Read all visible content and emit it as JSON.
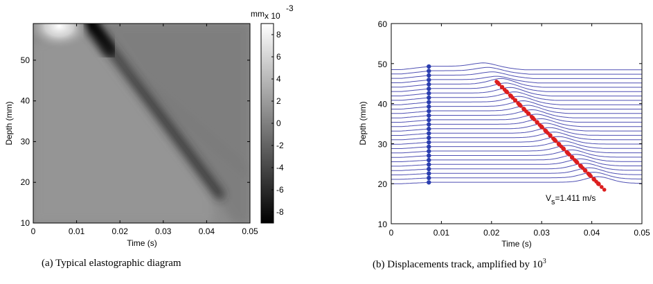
{
  "chart_data": [
    {
      "type": "heatmap",
      "label": "(a)",
      "caption": "Typical elastographic diagram",
      "xlabel": "Time (s)",
      "ylabel": "Depth (mm)",
      "xlim": [
        0,
        0.05
      ],
      "ylim": [
        10,
        59
      ],
      "xticks": [
        "0",
        "0.01",
        "0.02",
        "0.03",
        "0.04",
        "0.05"
      ],
      "yticks": [
        "10",
        "20",
        "30",
        "40",
        "50"
      ],
      "colorbar": {
        "unit": "mm",
        "scale": "x 10",
        "exponent": "-3",
        "ticks": [
          "8",
          "6",
          "4",
          "2",
          "0",
          "-2",
          "-4",
          "-6",
          "-8"
        ],
        "range": [
          -9,
          9
        ]
      },
      "features": {
        "colormap": "gray",
        "bright_peak": {
          "time": 0.006,
          "depth": 59
        },
        "dark_wave_front": {
          "start_time": 0.013,
          "start_depth": 59,
          "end_time": 0.043,
          "end_depth": 17
        }
      }
    },
    {
      "type": "line",
      "label": "(b)",
      "caption": "Displacements track, amplified by",
      "caption_power_base": "10",
      "caption_power_exp": "3",
      "xlabel": "Time (s)",
      "ylabel": "Depth (mm)",
      "xlim": [
        0,
        0.05
      ],
      "ylim": [
        10,
        60
      ],
      "xticks": [
        "0",
        "0.01",
        "0.02",
        "0.03",
        "0.04",
        "0.05"
      ],
      "yticks": [
        "10",
        "20",
        "30",
        "40",
        "50",
        "60"
      ],
      "annotation": {
        "main": "V",
        "sub": "s",
        "rest": "=1.411 m/s"
      },
      "traces": {
        "count": 27,
        "depth_start": 20,
        "depth_end": 48.5,
        "color": "#4e4fb3",
        "start_marker_time": 0.0075,
        "start_marker_color": "#2b3fb0",
        "peak_marker_color": "#dc1e1e"
      },
      "wave_front": {
        "velocity_label": "1.411 m/s",
        "start": {
          "time": 0.021,
          "depth": 45.5
        },
        "end": {
          "time": 0.0425,
          "depth": 18.5
        }
      }
    }
  ]
}
